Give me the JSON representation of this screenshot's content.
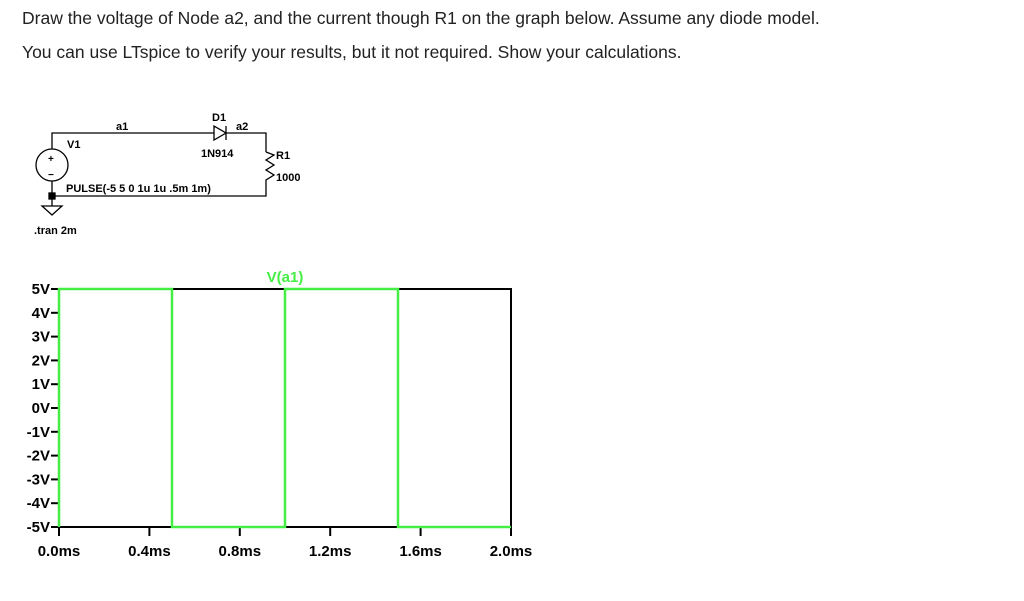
{
  "question": {
    "line1": "Draw the voltage of Node a2, and the current though R1 on the graph below.  Assume any diode model.",
    "line2": "You can use LTspice to verify your results, but it not required. Show your calculations."
  },
  "schematic": {
    "node_a1": "a1",
    "node_a2": "a2",
    "diode_name": "D1",
    "diode_model": "1N914",
    "source_name": "V1",
    "source_value": "PULSE(-5 5 0 1u 1u .5m 1m)",
    "resistor_name": "R1",
    "resistor_value": "1000",
    "directive": ".tran 2m",
    "source_plus": "+",
    "source_minus": "−"
  },
  "chart_data": {
    "type": "line",
    "title": "V(a1)",
    "xlabel": "",
    "ylabel": "",
    "xlim": [
      0,
      2.0
    ],
    "ylim": [
      -5,
      5
    ],
    "x_ticks": [
      "0.0ms",
      "0.4ms",
      "0.8ms",
      "1.2ms",
      "1.6ms",
      "2.0ms"
    ],
    "x_tick_values": [
      0,
      0.4,
      0.8,
      1.2,
      1.6,
      2.0
    ],
    "y_ticks": [
      "5V",
      "4V",
      "3V",
      "2V",
      "1V",
      "0V",
      "-1V",
      "-2V",
      "-3V",
      "-4V",
      "-5V"
    ],
    "y_tick_values": [
      5,
      4,
      3,
      2,
      1,
      0,
      -1,
      -2,
      -3,
      -4,
      -5
    ],
    "grid": false,
    "series": [
      {
        "name": "V(a1)",
        "color": "#44ee44",
        "x": [
          0,
          0,
          0.5,
          0.5,
          1.0,
          1.0,
          1.5,
          1.5,
          2.0
        ],
        "y": [
          -5,
          5,
          5,
          -5,
          -5,
          5,
          5,
          -5,
          -5
        ]
      }
    ]
  }
}
